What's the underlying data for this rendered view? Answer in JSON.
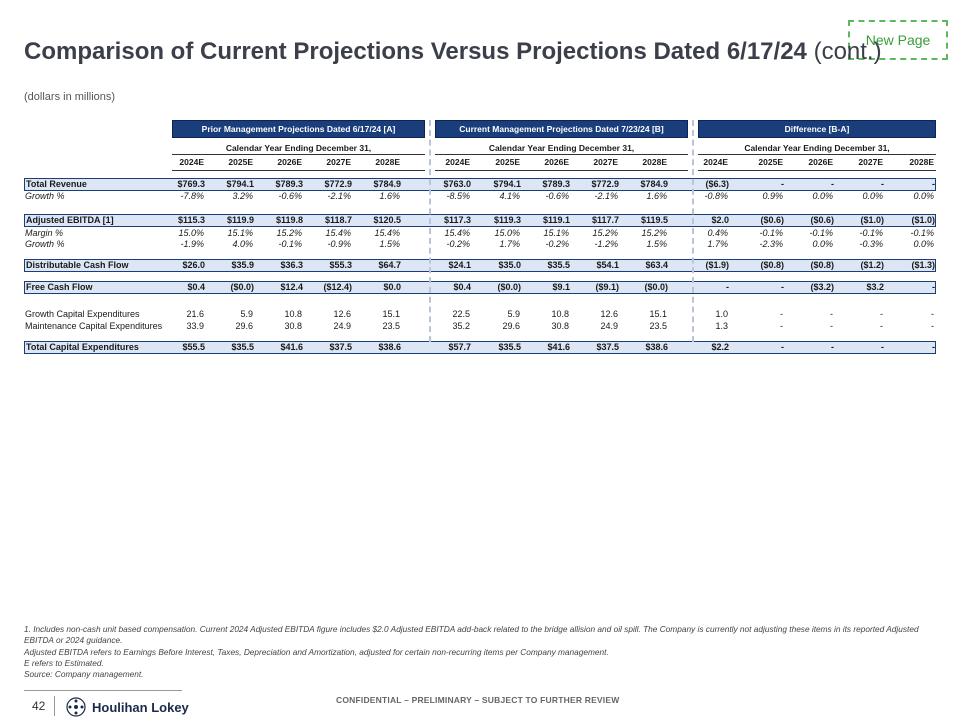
{
  "new_page_label": "New Page",
  "title_main": "Comparison of Current Projections Versus Projections Dated 6/17/24",
  "title_suffix": "(cont.)",
  "subtitle": "(dollars in millions)",
  "groups": {
    "a": "Prior Management Projections Dated 6/17/24 [A]",
    "b": "Current Management Projections Dated 7/23/24 [B]",
    "c": "Difference [B-A]"
  },
  "calendar_label": "Calendar Year Ending December 31,",
  "years": [
    "2024E",
    "2025E",
    "2026E",
    "2027E",
    "2028E"
  ],
  "rows": {
    "total_revenue": {
      "label": "Total Revenue",
      "values": [
        "$769.3",
        "$794.1",
        "$789.3",
        "$772.9",
        "$784.9",
        "$763.0",
        "$794.1",
        "$789.3",
        "$772.9",
        "$784.9",
        "($6.3)",
        "-",
        "-",
        "-",
        "-"
      ]
    },
    "rev_growth": {
      "label": "Growth %",
      "values": [
        "-7.8%",
        "3.2%",
        "-0.6%",
        "-2.1%",
        "1.6%",
        "-8.5%",
        "4.1%",
        "-0.6%",
        "-2.1%",
        "1.6%",
        "-0.8%",
        "0.9%",
        "0.0%",
        "0.0%",
        "0.0%"
      ]
    },
    "adj_ebitda": {
      "label": "Adjusted EBITDA [1]",
      "values": [
        "$115.3",
        "$119.9",
        "$119.8",
        "$118.7",
        "$120.5",
        "$117.3",
        "$119.3",
        "$119.1",
        "$117.7",
        "$119.5",
        "$2.0",
        "($0.6)",
        "($0.6)",
        "($1.0)",
        "($1.0)"
      ]
    },
    "margin": {
      "label": "Margin %",
      "values": [
        "15.0%",
        "15.1%",
        "15.2%",
        "15.4%",
        "15.4%",
        "15.4%",
        "15.0%",
        "15.1%",
        "15.2%",
        "15.2%",
        "0.4%",
        "-0.1%",
        "-0.1%",
        "-0.1%",
        "-0.1%"
      ]
    },
    "ebitda_growth": {
      "label": "Growth %",
      "values": [
        "-1.9%",
        "4.0%",
        "-0.1%",
        "-0.9%",
        "1.5%",
        "-0.2%",
        "1.7%",
        "-0.2%",
        "-1.2%",
        "1.5%",
        "1.7%",
        "-2.3%",
        "0.0%",
        "-0.3%",
        "0.0%"
      ]
    },
    "dcf": {
      "label": "Distributable Cash Flow",
      "values": [
        "$26.0",
        "$35.9",
        "$36.3",
        "$55.3",
        "$64.7",
        "$24.1",
        "$35.0",
        "$35.5",
        "$54.1",
        "$63.4",
        "($1.9)",
        "($0.8)",
        "($0.8)",
        "($1.2)",
        "($1.3)"
      ]
    },
    "fcf": {
      "label": "Free Cash Flow",
      "values": [
        "$0.4",
        "($0.0)",
        "$12.4",
        "($12.4)",
        "$0.0",
        "$0.4",
        "($0.0)",
        "$9.1",
        "($9.1)",
        "($0.0)",
        "-",
        "-",
        "($3.2)",
        "$3.2",
        "-"
      ]
    },
    "growth_capex": {
      "label": "Growth Capital Expenditures",
      "values": [
        "21.6",
        "5.9",
        "10.8",
        "12.6",
        "15.1",
        "22.5",
        "5.9",
        "10.8",
        "12.6",
        "15.1",
        "1.0",
        "-",
        "-",
        "-",
        "-"
      ]
    },
    "maint_capex": {
      "label": "Maintenance Capital Expenditures",
      "values": [
        "33.9",
        "29.6",
        "30.8",
        "24.9",
        "23.5",
        "35.2",
        "29.6",
        "30.8",
        "24.9",
        "23.5",
        "1.3",
        "-",
        "-",
        "-",
        "-"
      ]
    },
    "total_capex": {
      "label": "Total Capital Expenditures",
      "values": [
        "$55.5",
        "$35.5",
        "$41.6",
        "$37.5",
        "$38.6",
        "$57.7",
        "$35.5",
        "$41.6",
        "$37.5",
        "$38.6",
        "$2.2",
        "-",
        "-",
        "-",
        "-"
      ]
    }
  },
  "footnotes": [
    "1. Includes non-cash unit based compensation. Current 2024 Adjusted EBITDA figure includes $2.0 Adjusted EBITDA add-back related to the bridge allision and oil spill. The Company is currently not adjusting these items in its reported Adjusted EBITDA or 2024 guidance.",
    "Adjusted EBITDA refers to Earnings Before Interest, Taxes, Depreciation and Amortization, adjusted for certain non-recurring items per Company management.",
    "E refers to Estimated.",
    "Source: Company management."
  ],
  "page_number": "42",
  "logo_text": "Houlihan Lokey",
  "confidential": "CONFIDENTIAL – PRELIMINARY – SUBJECT TO FURTHER REVIEW",
  "colors": {
    "header": "#1a3d7c",
    "highlight": "#dde6f5",
    "new_page": "#5cb85c"
  }
}
